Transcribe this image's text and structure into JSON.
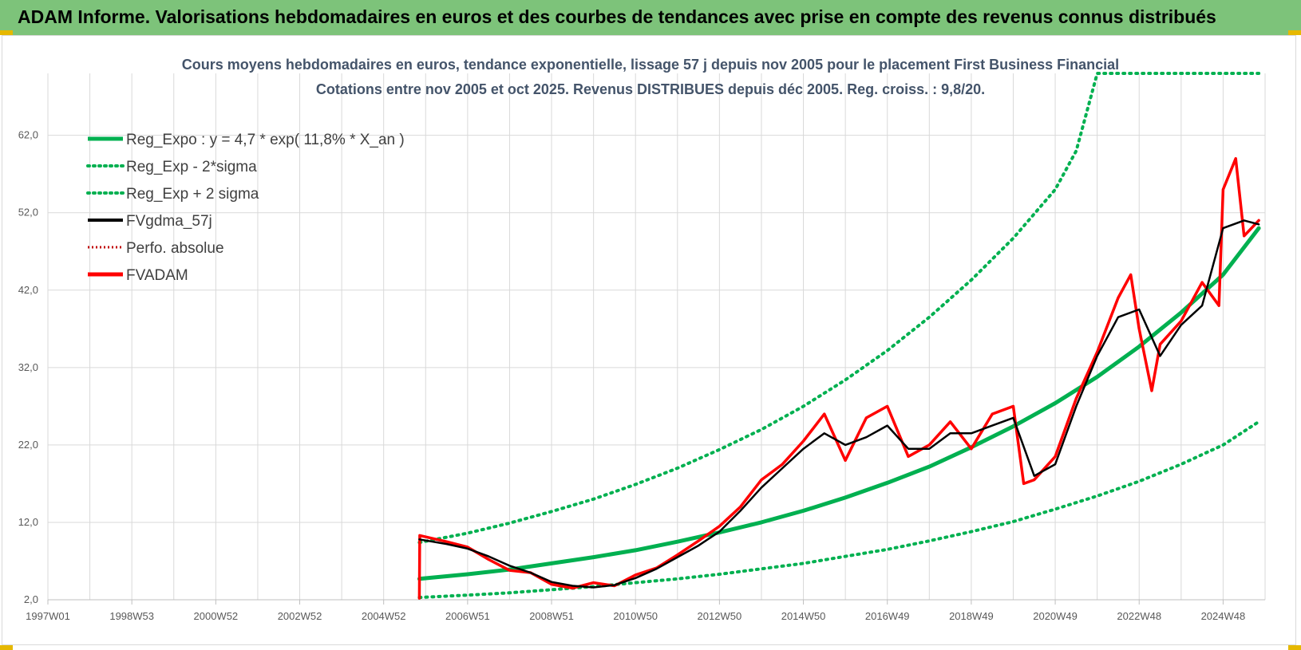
{
  "header": {
    "title": "ADAM Informe. Valorisations hebdomadaires en euros et des courbes de tendances avec prise en compte des revenus connus distribués"
  },
  "colors": {
    "header_bg": "#7dc37a",
    "reg_expo": "#00b050",
    "band": "#00b050",
    "gdma": "#000000",
    "perfo": "#c00000",
    "fvadam": "#ff0000"
  },
  "chart_data": {
    "type": "line",
    "title": [
      "Cours moyens hebdomadaires en euros, tendance exponentielle, lissage 57 j depuis nov 2005 pour le placement First Business Financial",
      "Cotations entre nov 2005 et oct 2025. Revenus DISTRIBUES depuis déc 2005. Reg. croiss. : 9,8/20."
    ],
    "x_ticks": [
      "1997W01",
      "1998W53",
      "2000W52",
      "2002W52",
      "2004W52",
      "2006W51",
      "2008W51",
      "2010W50",
      "2012W50",
      "2014W50",
      "2016W49",
      "2018W49",
      "2020W49",
      "2022W48",
      "2024W48"
    ],
    "x_range": [
      1997.0,
      2026.0
    ],
    "y_ticks": [
      "2,0",
      "12,0",
      "22,0",
      "32,0",
      "42,0",
      "52,0",
      "62,0"
    ],
    "y_range": [
      2,
      70
    ],
    "grid": true,
    "legend_position": "top-left",
    "legend": [
      {
        "label": "Reg_Expo : y = 4,7 * exp( 11,8% *  X_an )",
        "style": "solid-green"
      },
      {
        "label": "Reg_Exp - 2*sigma",
        "style": "dotted-green"
      },
      {
        "label": "Reg_Exp + 2 sigma",
        "style": "dotted-green"
      },
      {
        "label": "FVgdma_57j",
        "style": "solid-black"
      },
      {
        "label": "Perfo. absolue",
        "style": "dotted-darkred"
      },
      {
        "label": "FVADAM",
        "style": "solid-red"
      }
    ],
    "series": [
      {
        "name": "Reg_Expo : y = 4,7 * exp( 11,8% *  X_an )",
        "x": [
          2005.85,
          2007.0,
          2008.0,
          2009.0,
          2010.0,
          2011.0,
          2012.0,
          2013.0,
          2014.0,
          2015.0,
          2016.0,
          2017.0,
          2018.0,
          2019.0,
          2020.0,
          2021.0,
          2022.0,
          2023.0,
          2024.0,
          2025.0,
          2025.85
        ],
        "y": [
          4.7,
          5.3,
          5.9,
          6.7,
          7.5,
          8.4,
          9.5,
          10.7,
          12.0,
          13.5,
          15.2,
          17.1,
          19.2,
          21.7,
          24.4,
          27.4,
          30.8,
          34.7,
          39.1,
          44.0,
          50.0
        ]
      },
      {
        "name": "Reg_Exp - 2*sigma",
        "x": [
          2005.85,
          2007.0,
          2008.0,
          2009.0,
          2010.0,
          2011.0,
          2012.0,
          2013.0,
          2014.0,
          2015.0,
          2016.0,
          2017.0,
          2018.0,
          2019.0,
          2020.0,
          2021.0,
          2022.0,
          2023.0,
          2024.0,
          2025.0,
          2025.85
        ],
        "y": [
          2.3,
          2.6,
          2.9,
          3.3,
          3.7,
          4.2,
          4.7,
          5.3,
          6.0,
          6.7,
          7.6,
          8.5,
          9.6,
          10.8,
          12.1,
          13.7,
          15.4,
          17.3,
          19.5,
          22.0,
          25.0
        ]
      },
      {
        "name": "Reg_Exp + 2 sigma",
        "x": [
          2005.85,
          2007.0,
          2008.0,
          2009.0,
          2010.0,
          2011.0,
          2012.0,
          2013.0,
          2014.0,
          2015.0,
          2016.0,
          2017.0,
          2018.0,
          2019.0,
          2020.0,
          2021.0,
          2021.5,
          2022.0,
          2023.0,
          2024.0,
          2025.0,
          2025.85
        ],
        "y": [
          9.4,
          10.6,
          11.9,
          13.4,
          15.0,
          16.9,
          19.0,
          21.4,
          24.0,
          27.0,
          30.4,
          34.2,
          38.5,
          43.3,
          48.7,
          55.0,
          60.0,
          70.0,
          70.0,
          70.0,
          70.0,
          70.0
        ]
      },
      {
        "name": "FVgdma_57j",
        "x": [
          2005.85,
          2006.5,
          2007.0,
          2007.5,
          2008.0,
          2008.5,
          2009.0,
          2009.5,
          2010.0,
          2010.5,
          2011.0,
          2011.5,
          2012.0,
          2012.5,
          2013.0,
          2013.5,
          2014.0,
          2014.5,
          2015.0,
          2015.5,
          2016.0,
          2016.5,
          2017.0,
          2017.5,
          2018.0,
          2018.5,
          2019.0,
          2019.5,
          2020.0,
          2020.5,
          2021.0,
          2021.5,
          2022.0,
          2022.5,
          2023.0,
          2023.5,
          2024.0,
          2024.5,
          2025.0,
          2025.5,
          2025.85
        ],
        "y": [
          9.8,
          9.2,
          8.6,
          7.6,
          6.4,
          5.5,
          4.3,
          3.8,
          3.6,
          3.9,
          4.8,
          6.0,
          7.5,
          9.0,
          10.8,
          13.5,
          16.5,
          19.0,
          21.5,
          23.5,
          22.0,
          23.0,
          24.5,
          21.5,
          21.5,
          23.5,
          23.5,
          24.5,
          25.5,
          18.0,
          19.5,
          27.0,
          33.5,
          38.5,
          39.5,
          33.5,
          37.5,
          40.0,
          50.0,
          51.0,
          50.5
        ]
      },
      {
        "name": "FVADAM",
        "x": [
          2005.85,
          2005.86,
          2006.5,
          2007.0,
          2007.5,
          2008.0,
          2008.5,
          2009.0,
          2009.5,
          2010.0,
          2010.5,
          2011.0,
          2011.5,
          2012.0,
          2012.5,
          2013.0,
          2013.5,
          2014.0,
          2014.5,
          2015.0,
          2015.5,
          2016.0,
          2016.5,
          2017.0,
          2017.5,
          2018.0,
          2018.5,
          2019.0,
          2019.5,
          2020.0,
          2020.25,
          2020.5,
          2021.0,
          2021.5,
          2022.0,
          2022.5,
          2022.8,
          2023.0,
          2023.3,
          2023.5,
          2024.0,
          2024.5,
          2024.9,
          2025.0,
          2025.3,
          2025.5,
          2025.85
        ],
        "y": [
          2.2,
          10.3,
          9.5,
          8.8,
          7.2,
          5.8,
          5.5,
          4.0,
          3.5,
          4.2,
          3.8,
          5.2,
          6.1,
          7.8,
          9.6,
          11.5,
          14.0,
          17.5,
          19.5,
          22.5,
          26.0,
          20.0,
          25.5,
          27.0,
          20.5,
          22.0,
          25.0,
          21.5,
          26.0,
          27.0,
          17.0,
          17.5,
          20.5,
          28.0,
          34.0,
          41.0,
          44.0,
          37.0,
          29.0,
          35.0,
          38.0,
          43.0,
          40.0,
          55.0,
          59.0,
          49.0,
          51.0
        ]
      }
    ]
  }
}
